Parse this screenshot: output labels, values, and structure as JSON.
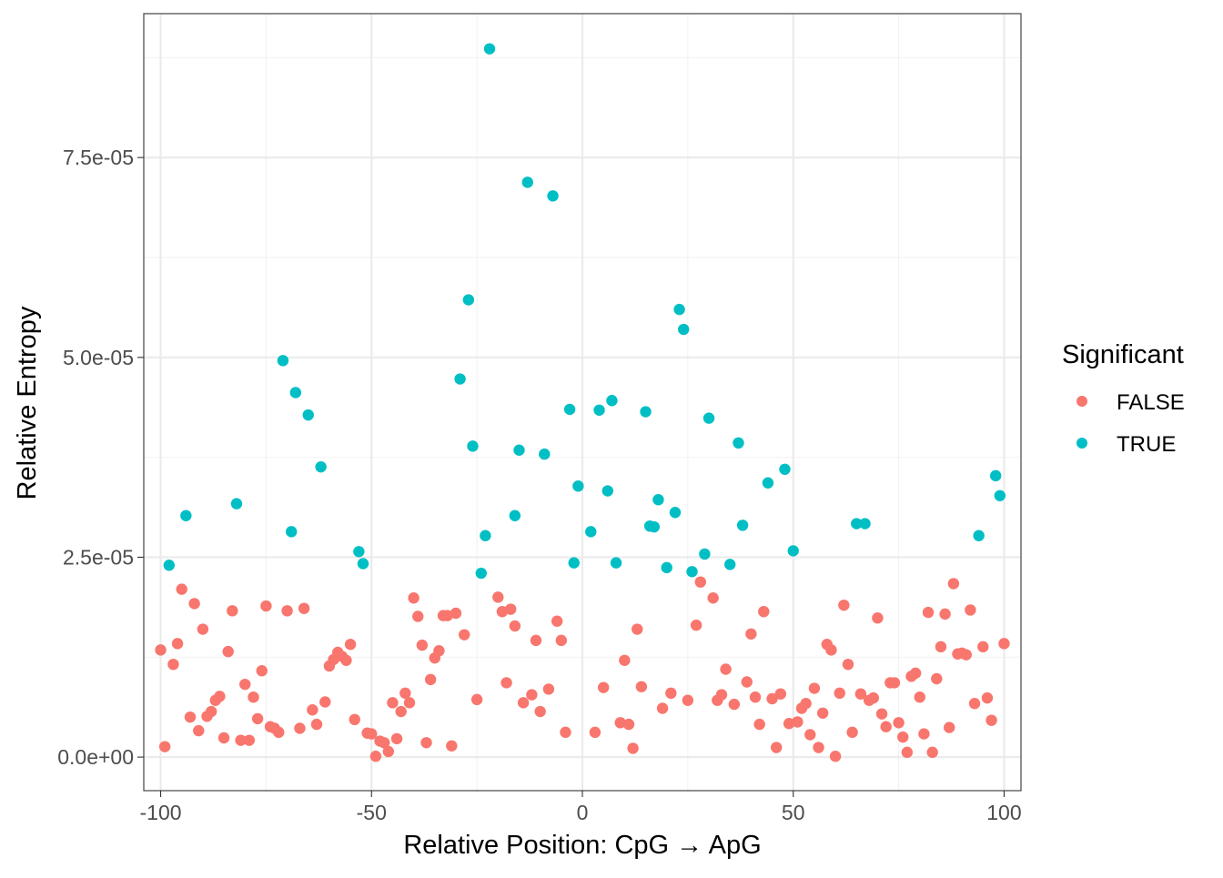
{
  "chart_data": {
    "type": "scatter",
    "title": "",
    "xlabel": "Relative Position: CpG → ApG",
    "ylabel": "Relative Entropy",
    "xlim": [
      -104,
      104
    ],
    "ylim": [
      -4.2e-06,
      9.3e-05
    ],
    "x_ticks": [
      -100,
      -50,
      0,
      50,
      100
    ],
    "x_tick_labels": [
      "-100",
      "-50",
      "0",
      "50",
      "100"
    ],
    "y_ticks": [
      0,
      2.5e-05,
      5e-05,
      7.5e-05
    ],
    "y_tick_labels": [
      "0.0e+00",
      "2.5e-05",
      "5.0e-05",
      "7.5e-05"
    ],
    "grid": true,
    "legend": {
      "title": "Significant",
      "position": "right",
      "entries": [
        {
          "label": "FALSE",
          "color": "#F8766D"
        },
        {
          "label": "TRUE",
          "color": "#00BFC4"
        }
      ]
    },
    "series": [
      {
        "name": "FALSE",
        "color": "#F8766D",
        "points": [
          [
            -100,
            1.34e-05
          ],
          [
            -99,
            1.3e-06
          ],
          [
            -97,
            1.16e-05
          ],
          [
            -96,
            1.42e-05
          ],
          [
            -95,
            2.1e-05
          ],
          [
            -93,
            5e-06
          ],
          [
            -92,
            1.92e-05
          ],
          [
            -91,
            3.3e-06
          ],
          [
            -90,
            1.6e-05
          ],
          [
            -89,
            5.1e-06
          ],
          [
            -88,
            5.7e-06
          ],
          [
            -87,
            7.1e-06
          ],
          [
            -86,
            7.6e-06
          ],
          [
            -85,
            2.4e-06
          ],
          [
            -84,
            1.32e-05
          ],
          [
            -83,
            1.83e-05
          ],
          [
            -81,
            2.1e-06
          ],
          [
            -80,
            9.1e-06
          ],
          [
            -79,
            2.1e-06
          ],
          [
            -78,
            7.5e-06
          ],
          [
            -77,
            4.8e-06
          ],
          [
            -76,
            1.08e-05
          ],
          [
            -75,
            1.89e-05
          ],
          [
            -74,
            3.8e-06
          ],
          [
            -73,
            3.6e-06
          ],
          [
            -72,
            3.1e-06
          ],
          [
            -70,
            1.83e-05
          ],
          [
            -67,
            3.6e-06
          ],
          [
            -66,
            1.86e-05
          ],
          [
            -64,
            5.9e-06
          ],
          [
            -63,
            4.1e-06
          ],
          [
            -61,
            6.9e-06
          ],
          [
            -60,
            1.14e-05
          ],
          [
            -59,
            1.22e-05
          ],
          [
            -58,
            1.31e-05
          ],
          [
            -57,
            1.26e-05
          ],
          [
            -56,
            1.21e-05
          ],
          [
            -55,
            1.41e-05
          ],
          [
            -54,
            4.7e-06
          ],
          [
            -51,
            3e-06
          ],
          [
            -50,
            2.9e-06
          ],
          [
            -49,
            1e-07
          ],
          [
            -48,
            2e-06
          ],
          [
            -47,
            1.8e-06
          ],
          [
            -46,
            7e-07
          ],
          [
            -45,
            6.8e-06
          ],
          [
            -44,
            2.3e-06
          ],
          [
            -43,
            5.7e-06
          ],
          [
            -42,
            8e-06
          ],
          [
            -41,
            6.8e-06
          ],
          [
            -40,
            1.99e-05
          ],
          [
            -39,
            1.76e-05
          ],
          [
            -38,
            1.4e-05
          ],
          [
            -37,
            1.8e-06
          ],
          [
            -36,
            9.7e-06
          ],
          [
            -35,
            1.24e-05
          ],
          [
            -34,
            1.33e-05
          ],
          [
            -33,
            1.77e-05
          ],
          [
            -32,
            1.77e-05
          ],
          [
            -31,
            1.4e-06
          ],
          [
            -30,
            1.8e-05
          ],
          [
            -28,
            1.53e-05
          ],
          [
            -25,
            7.2e-06
          ],
          [
            -20,
            2e-05
          ],
          [
            -19,
            1.82e-05
          ],
          [
            -18,
            9.3e-06
          ],
          [
            -17,
            1.85e-05
          ],
          [
            -16,
            1.64e-05
          ],
          [
            -14,
            6.8e-06
          ],
          [
            -12,
            7.8e-06
          ],
          [
            -11,
            1.46e-05
          ],
          [
            -10,
            5.7e-06
          ],
          [
            -8,
            8.5e-06
          ],
          [
            -6,
            1.7e-05
          ],
          [
            -5,
            1.46e-05
          ],
          [
            -4,
            3.1e-06
          ],
          [
            3,
            3.1e-06
          ],
          [
            5,
            8.7e-06
          ],
          [
            9,
            4.3e-06
          ],
          [
            10,
            1.21e-05
          ],
          [
            11,
            4.1e-06
          ],
          [
            12,
            1.1e-06
          ],
          [
            13,
            1.6e-05
          ],
          [
            14,
            8.8e-06
          ],
          [
            19,
            6.1e-06
          ],
          [
            21,
            8e-06
          ],
          [
            25,
            7.1e-06
          ],
          [
            27,
            1.65e-05
          ],
          [
            28,
            2.19e-05
          ],
          [
            31,
            1.99e-05
          ],
          [
            32,
            7.1e-06
          ],
          [
            33,
            7.8e-06
          ],
          [
            34,
            1.1e-05
          ],
          [
            36,
            6.6e-06
          ],
          [
            39,
            9.4e-06
          ],
          [
            40,
            1.54e-05
          ],
          [
            41,
            7.5e-06
          ],
          [
            42,
            4.1e-06
          ],
          [
            43,
            1.82e-05
          ],
          [
            45,
            7.3e-06
          ],
          [
            46,
            1.2e-06
          ],
          [
            47,
            7.9e-06
          ],
          [
            49,
            4.2e-06
          ],
          [
            51,
            4.4e-06
          ],
          [
            52,
            6.1e-06
          ],
          [
            53,
            6.7e-06
          ],
          [
            54,
            2.8e-06
          ],
          [
            55,
            8.6e-06
          ],
          [
            56,
            1.2e-06
          ],
          [
            57,
            5.5e-06
          ],
          [
            58,
            1.41e-05
          ],
          [
            59,
            1.34e-05
          ],
          [
            60,
            1e-07
          ],
          [
            61,
            8e-06
          ],
          [
            62,
            1.9e-05
          ],
          [
            63,
            1.16e-05
          ],
          [
            64,
            3.1e-06
          ],
          [
            66,
            7.9e-06
          ],
          [
            68,
            7.1e-06
          ],
          [
            69,
            7.4e-06
          ],
          [
            70,
            1.74e-05
          ],
          [
            71,
            5.4e-06
          ],
          [
            72,
            3.8e-06
          ],
          [
            73,
            9.3e-06
          ],
          [
            74,
            9.3e-06
          ],
          [
            75,
            4.3e-06
          ],
          [
            76,
            2.5e-06
          ],
          [
            77,
            6e-07
          ],
          [
            78,
            1.01e-05
          ],
          [
            79,
            1.05e-05
          ],
          [
            80,
            7.5e-06
          ],
          [
            81,
            2.9e-06
          ],
          [
            82,
            1.81e-05
          ],
          [
            83,
            6e-07
          ],
          [
            84,
            9.8e-06
          ],
          [
            85,
            1.38e-05
          ],
          [
            86,
            1.79e-05
          ],
          [
            87,
            3.7e-06
          ],
          [
            88,
            2.17e-05
          ],
          [
            89,
            1.29e-05
          ],
          [
            90,
            1.3e-05
          ],
          [
            91,
            1.28e-05
          ],
          [
            92,
            1.84e-05
          ],
          [
            93,
            6.7e-06
          ],
          [
            95,
            1.38e-05
          ],
          [
            96,
            7.4e-06
          ],
          [
            97,
            4.6e-06
          ],
          [
            100,
            1.42e-05
          ]
        ]
      },
      {
        "name": "TRUE",
        "color": "#00BFC4",
        "points": [
          [
            -98,
            2.4e-05
          ],
          [
            -94,
            3.02e-05
          ],
          [
            -82,
            3.17e-05
          ],
          [
            -71,
            4.96e-05
          ],
          [
            -69,
            2.82e-05
          ],
          [
            -68,
            4.56e-05
          ],
          [
            -65,
            4.28e-05
          ],
          [
            -62,
            3.63e-05
          ],
          [
            -53,
            2.57e-05
          ],
          [
            -52,
            2.42e-05
          ],
          [
            -29,
            4.73e-05
          ],
          [
            -27,
            5.72e-05
          ],
          [
            -26,
            3.89e-05
          ],
          [
            -24,
            2.3e-05
          ],
          [
            -23,
            2.77e-05
          ],
          [
            -22,
            8.86e-05
          ],
          [
            -16,
            3.02e-05
          ],
          [
            -15,
            3.84e-05
          ],
          [
            -13,
            7.19e-05
          ],
          [
            -9,
            3.79e-05
          ],
          [
            -7,
            7.02e-05
          ],
          [
            -3,
            4.35e-05
          ],
          [
            -2,
            2.43e-05
          ],
          [
            -1,
            3.39e-05
          ],
          [
            2,
            2.82e-05
          ],
          [
            4,
            4.34e-05
          ],
          [
            6,
            3.33e-05
          ],
          [
            7,
            4.46e-05
          ],
          [
            8,
            2.43e-05
          ],
          [
            15,
            4.32e-05
          ],
          [
            16,
            2.89e-05
          ],
          [
            17,
            2.88e-05
          ],
          [
            18,
            3.22e-05
          ],
          [
            20,
            2.37e-05
          ],
          [
            22,
            3.06e-05
          ],
          [
            23,
            5.6e-05
          ],
          [
            24,
            5.35e-05
          ],
          [
            26,
            2.32e-05
          ],
          [
            29,
            2.54e-05
          ],
          [
            30,
            4.24e-05
          ],
          [
            35,
            2.41e-05
          ],
          [
            37,
            3.93e-05
          ],
          [
            38,
            2.9e-05
          ],
          [
            44,
            3.43e-05
          ],
          [
            48,
            3.6e-05
          ],
          [
            50,
            2.58e-05
          ],
          [
            65,
            2.92e-05
          ],
          [
            67,
            2.92e-05
          ],
          [
            94,
            2.77e-05
          ],
          [
            98,
            3.52e-05
          ],
          [
            99,
            3.27e-05
          ]
        ]
      }
    ]
  }
}
